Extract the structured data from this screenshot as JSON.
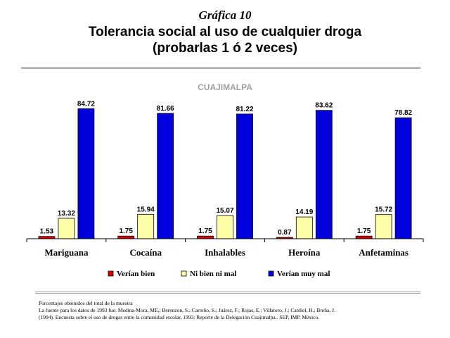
{
  "slide": {
    "number_label": "Gráfica 10",
    "title_line1": "Tolerancia social al uso de cualquier droga",
    "title_line2": "(probarlas 1 ó 2 veces)"
  },
  "chart_data": {
    "type": "bar",
    "title": "CUAJIMALPA",
    "categories": [
      "Mariguana",
      "Cocaína",
      "Inhalables",
      "Heroína",
      "Anfetaminas"
    ],
    "series": [
      {
        "name": "Verían bien",
        "color": "#dd0000",
        "values": [
          1.53,
          1.75,
          1.75,
          0.87,
          1.75
        ]
      },
      {
        "name": "Ni bien ni mal",
        "color": "#ffffa8",
        "values": [
          13.32,
          15.94,
          15.07,
          14.19,
          15.72
        ]
      },
      {
        "name": "Verían muy mal",
        "color": "#0000dd",
        "values": [
          84.72,
          81.66,
          81.22,
          83.62,
          78.82
        ]
      }
    ],
    "ylim": [
      0,
      100
    ],
    "grid": false,
    "legend_position": "bottom"
  },
  "footnote": {
    "line1": "Porcentajes obtenidos del total de la muestra",
    "line2": "La fuente para los datos de 1993 fue: Medina-Mora, ME,; Berenzon, S.; Carreño, S.; Juárez, F.; Rojas, E.; Villatoro, J.; Cardiel, H.; Breña, J.",
    "line3": "(1994). Encuesta sobre el uso de drogas entre la comunidad escolar, 1993: Reporte de la Delegación Cuajimalpa.. SEP, IMP. México."
  }
}
